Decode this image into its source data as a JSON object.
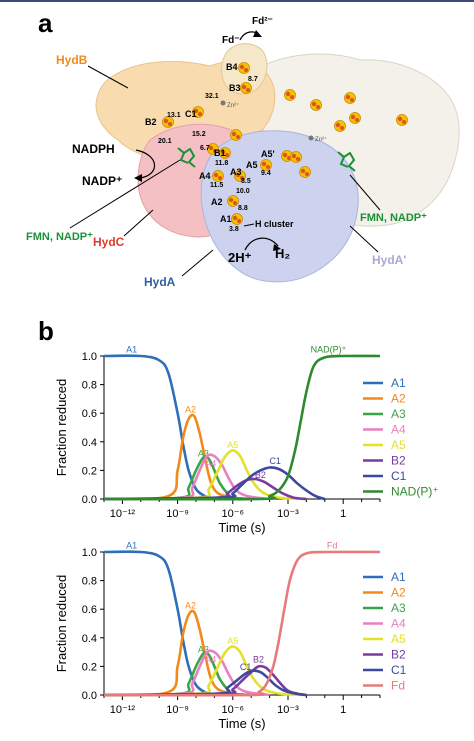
{
  "panel_a": {
    "label": "a",
    "fd_ox": "Fd²⁻",
    "fd_red": "Fd⁻",
    "zn_left": "Zn²⁺",
    "zn_right": "Zn²⁺",
    "subunits": {
      "hydB": "HydB",
      "hydC": "HydC",
      "hydA": "HydA",
      "hydA_prime": "HydA'"
    },
    "cofactors": {
      "nadph": "NADPH",
      "nadp": "NADP⁺",
      "fmn_left": "FMN, NADP⁺",
      "fmn_right": "FMN, NADP⁺",
      "h_cluster": "H cluster",
      "protons": "2H⁺",
      "h2": "H₂"
    },
    "clusters": [
      "B4",
      "B3",
      "C1",
      "B2",
      "B1",
      "A5'",
      "A5",
      "A4",
      "A3",
      "A2",
      "A1"
    ],
    "distances": [
      "8.7",
      "32.1",
      "13.1",
      "15.2",
      "20.1",
      "6.7",
      "11.8",
      "9.4",
      "11.5",
      "8.5",
      "10.0",
      "8.8",
      "3.8"
    ],
    "colors": {
      "hydB": "#f8dcb0",
      "hydC": "#f4c0c4",
      "hydA": "#cdd3ee",
      "hydA_prime": "#f3f1ea",
      "fmn": "#1b8f3a",
      "hydC_label": "#e03b2b",
      "hydB_label": "#f28a1b",
      "hydA_label": "#2e5fa8",
      "hydAp_label": "#a9a8d8"
    }
  },
  "panel_b": {
    "label": "b"
  },
  "chart_data": [
    {
      "type": "line",
      "x_scale": "log10",
      "x_ticks": [
        "10⁻¹²",
        "10⁻⁹",
        "10⁻⁶",
        "10⁻³",
        "1"
      ],
      "y_ticks": [
        "0.0",
        "0.2",
        "0.4",
        "0.6",
        "0.8",
        "1.0"
      ],
      "xlabel": "Time (s)",
      "ylabel": "Fraction reduced",
      "xlim_log10": [
        -13,
        2
      ],
      "ylim": [
        0,
        1
      ],
      "legend_position": "right",
      "series": [
        {
          "name": "A1",
          "color": "#2f6fba",
          "label_log10_t": -11.5,
          "label_y": 1.04,
          "x_log10": [
            -13,
            -11,
            -10,
            -9.5,
            -9,
            -8.7,
            -8.4,
            -8,
            -7.5,
            -7,
            -6
          ],
          "y": [
            1.0,
            1.0,
            0.97,
            0.88,
            0.6,
            0.38,
            0.2,
            0.07,
            0.02,
            0.0,
            0.0
          ]
        },
        {
          "name": "A2",
          "color": "#f28a1b",
          "label_log10_t": -8.3,
          "label_y": 0.62,
          "x_log10": [
            -13,
            -9.5,
            -9,
            -8.7,
            -8.4,
            -8.1,
            -7.8,
            -7.5,
            -7.2,
            -6.8,
            -6,
            -5
          ],
          "y": [
            0.0,
            0.02,
            0.2,
            0.43,
            0.56,
            0.58,
            0.46,
            0.28,
            0.12,
            0.04,
            0.01,
            0.0
          ]
        },
        {
          "name": "A3",
          "color": "#3aa547",
          "label_log10_t": -7.6,
          "label_y": 0.31,
          "x_log10": [
            -13,
            -8.8,
            -8.4,
            -8.0,
            -7.6,
            -7.3,
            -7.0,
            -6.7,
            -6.3,
            -6,
            -5
          ],
          "y": [
            0.0,
            0.01,
            0.08,
            0.2,
            0.29,
            0.28,
            0.2,
            0.11,
            0.04,
            0.01,
            0.0
          ]
        },
        {
          "name": "A4",
          "color": "#ea7fc4",
          "label_log10_t": -7.2,
          "label_y": 0.24,
          "x_log10": [
            -13,
            -8.6,
            -8.2,
            -7.8,
            -7.4,
            -7.0,
            -6.6,
            -6.2,
            -5.8,
            -5.2,
            -4
          ],
          "y": [
            0.0,
            0.01,
            0.08,
            0.2,
            0.3,
            0.3,
            0.24,
            0.14,
            0.06,
            0.02,
            0.0
          ]
        },
        {
          "name": "A5",
          "color": "#e3e128",
          "label_log10_t": -6.0,
          "label_y": 0.37,
          "x_log10": [
            -13,
            -7.8,
            -7.3,
            -6.8,
            -6.4,
            -6.0,
            -5.6,
            -5.2,
            -4.8,
            -4.3,
            -3.5,
            -2
          ],
          "y": [
            0.0,
            0.01,
            0.07,
            0.2,
            0.3,
            0.34,
            0.3,
            0.19,
            0.1,
            0.04,
            0.01,
            0.0
          ]
        },
        {
          "name": "B2",
          "color": "#7b3a9e",
          "label_log10_t": -4.5,
          "label_y": 0.16,
          "x_log10": [
            -13,
            -6.8,
            -6.3,
            -5.8,
            -5.3,
            -4.8,
            -4.3,
            -3.8,
            -3.3,
            -2.7,
            -2
          ],
          "y": [
            0.0,
            0.01,
            0.04,
            0.09,
            0.13,
            0.14,
            0.12,
            0.08,
            0.04,
            0.01,
            0.0
          ]
        },
        {
          "name": "C1",
          "color": "#3b4a9e",
          "label_log10_t": -3.7,
          "label_y": 0.26,
          "x_log10": [
            -13,
            -6.5,
            -6.0,
            -5.5,
            -5.0,
            -4.5,
            -4.0,
            -3.5,
            -3.0,
            -2.5,
            -2.0,
            -1.5,
            -1
          ],
          "y": [
            0.0,
            0.01,
            0.04,
            0.1,
            0.16,
            0.2,
            0.22,
            0.21,
            0.17,
            0.11,
            0.06,
            0.02,
            0.0
          ]
        },
        {
          "name": "NAD(P)⁺",
          "color": "#2f8a2f",
          "label_log10_t": -0.8,
          "label_y": 1.04,
          "x_log10": [
            -13,
            -4.5,
            -4.0,
            -3.5,
            -3.0,
            -2.6,
            -2.3,
            -2.0,
            -1.6,
            -1.0,
            0,
            2
          ],
          "y": [
            0.0,
            0.0,
            0.02,
            0.06,
            0.16,
            0.35,
            0.55,
            0.75,
            0.93,
            0.99,
            1.0,
            1.0
          ]
        }
      ]
    },
    {
      "type": "line",
      "x_scale": "log10",
      "x_ticks": [
        "10⁻¹²",
        "10⁻⁹",
        "10⁻⁶",
        "10⁻³",
        "1"
      ],
      "y_ticks": [
        "0.0",
        "0.2",
        "0.4",
        "0.6",
        "0.8",
        "1.0"
      ],
      "xlabel": "Time (s)",
      "ylabel": "Fraction reduced",
      "xlim_log10": [
        -13,
        2
      ],
      "ylim": [
        0,
        1
      ],
      "legend_position": "right",
      "series": [
        {
          "name": "A1",
          "color": "#2f6fba",
          "label_log10_t": -11.5,
          "label_y": 1.04,
          "x_log10": [
            -13,
            -11,
            -10,
            -9.5,
            -9,
            -8.7,
            -8.4,
            -8,
            -7.5,
            -7,
            -6
          ],
          "y": [
            1.0,
            1.0,
            0.97,
            0.88,
            0.6,
            0.38,
            0.2,
            0.07,
            0.02,
            0.0,
            0.0
          ]
        },
        {
          "name": "A2",
          "color": "#f28a1b",
          "label_log10_t": -8.3,
          "label_y": 0.62,
          "x_log10": [
            -13,
            -9.5,
            -9,
            -8.7,
            -8.4,
            -8.1,
            -7.8,
            -7.5,
            -7.2,
            -6.8,
            -6,
            -5
          ],
          "y": [
            0.0,
            0.02,
            0.2,
            0.43,
            0.56,
            0.58,
            0.46,
            0.28,
            0.12,
            0.04,
            0.01,
            0.0
          ]
        },
        {
          "name": "A3",
          "color": "#3aa547",
          "label_log10_t": -7.6,
          "label_y": 0.31,
          "x_log10": [
            -13,
            -8.8,
            -8.4,
            -8.0,
            -7.6,
            -7.3,
            -7.0,
            -6.7,
            -6.3,
            -6,
            -5
          ],
          "y": [
            0.0,
            0.01,
            0.08,
            0.2,
            0.29,
            0.28,
            0.2,
            0.11,
            0.04,
            0.01,
            0.0
          ]
        },
        {
          "name": "A4",
          "color": "#ea7fc4",
          "label_log10_t": -7.2,
          "label_y": 0.24,
          "x_log10": [
            -13,
            -8.6,
            -8.2,
            -7.8,
            -7.4,
            -7.0,
            -6.6,
            -6.2,
            -5.8,
            -5.2,
            -4
          ],
          "y": [
            0.0,
            0.01,
            0.08,
            0.2,
            0.3,
            0.3,
            0.24,
            0.14,
            0.06,
            0.02,
            0.0
          ]
        },
        {
          "name": "A5",
          "color": "#e3e128",
          "label_log10_t": -6.0,
          "label_y": 0.37,
          "x_log10": [
            -13,
            -7.8,
            -7.3,
            -6.8,
            -6.4,
            -6.0,
            -5.6,
            -5.2,
            -4.8,
            -4.3,
            -3.5,
            -2
          ],
          "y": [
            0.0,
            0.01,
            0.07,
            0.2,
            0.3,
            0.34,
            0.3,
            0.19,
            0.1,
            0.04,
            0.01,
            0.0
          ]
        },
        {
          "name": "B2",
          "color": "#7b3a9e",
          "label_log10_t": -4.6,
          "label_y": 0.24,
          "x_log10": [
            -13,
            -6.5,
            -6.0,
            -5.5,
            -5.0,
            -4.6,
            -4.2,
            -3.8,
            -3.4,
            -3.0,
            -2.5,
            -2
          ],
          "y": [
            0.0,
            0.01,
            0.04,
            0.1,
            0.16,
            0.2,
            0.19,
            0.14,
            0.08,
            0.03,
            0.01,
            0.0
          ]
        },
        {
          "name": "C1",
          "color": "#3b4a9e",
          "label_log10_t": -5.3,
          "label_y": 0.19,
          "x_log10": [
            -13,
            -6.8,
            -6.3,
            -5.8,
            -5.3,
            -4.9,
            -4.5,
            -4.1,
            -3.7,
            -3.2,
            -2.6,
            -2
          ],
          "y": [
            0.0,
            0.01,
            0.05,
            0.1,
            0.15,
            0.17,
            0.16,
            0.12,
            0.07,
            0.03,
            0.01,
            0.0
          ]
        },
        {
          "name": "Fd",
          "color": "#e77b7b",
          "label_log10_t": -0.6,
          "label_y": 1.04,
          "x_log10": [
            -13,
            -5.0,
            -4.6,
            -4.2,
            -3.8,
            -3.5,
            -3.2,
            -2.9,
            -2.5,
            -2.0,
            -1,
            2
          ],
          "y": [
            0.0,
            0.0,
            0.02,
            0.07,
            0.2,
            0.38,
            0.6,
            0.8,
            0.94,
            0.99,
            1.0,
            1.0
          ]
        }
      ]
    }
  ]
}
